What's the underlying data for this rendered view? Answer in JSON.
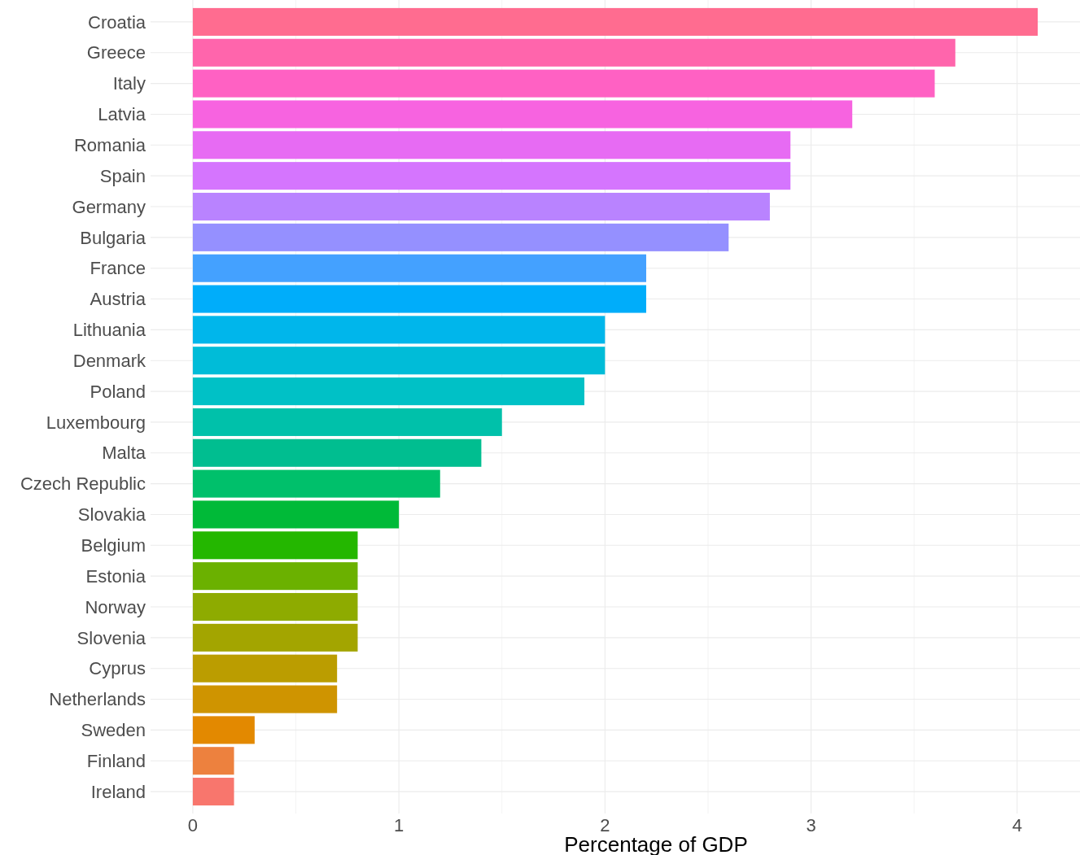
{
  "chart_data": {
    "type": "bar",
    "orientation": "horizontal",
    "xlabel": "Percentage of GDP",
    "categories": [
      "Croatia",
      "Greece",
      "Italy",
      "Latvia",
      "Romania",
      "Spain",
      "Germany",
      "Bulgaria",
      "France",
      "Austria",
      "Lithuania",
      "Denmark",
      "Poland",
      "Luxembourg",
      "Malta",
      "Czech Republic",
      "Slovakia",
      "Belgium",
      "Estonia",
      "Norway",
      "Slovenia",
      "Cyprus",
      "Netherlands",
      "Sweden",
      "Finland",
      "Ireland"
    ],
    "values": [
      4.1,
      3.7,
      3.6,
      3.2,
      2.9,
      2.9,
      2.8,
      2.6,
      2.2,
      2.2,
      2.0,
      2.0,
      1.9,
      1.5,
      1.4,
      1.2,
      1.0,
      0.8,
      0.8,
      0.8,
      0.8,
      0.7,
      0.7,
      0.3,
      0.2,
      0.2
    ],
    "colors": [
      "#FF6C90",
      "#FF65AC",
      "#FF61C3",
      "#F763E0",
      "#E76BF3",
      "#D575FE",
      "#B983FF",
      "#9590FF",
      "#44A1FF",
      "#00ADFA",
      "#00B6EB",
      "#00BCD8",
      "#00C1C6",
      "#00C1AA",
      "#00BE90",
      "#00C06B",
      "#00BA38",
      "#24B700",
      "#6BB100",
      "#8EAB00",
      "#A3A500",
      "#BB9D00",
      "#CF9400",
      "#E38900",
      "#ED813E",
      "#F8766D"
    ],
    "xlim": [
      -0.205,
      4.305
    ],
    "xticks": [
      0,
      {
        "value": 0.5,
        "label": null
      },
      1,
      {
        "value": 1.5,
        "label": null
      },
      2,
      {
        "value": 2.5,
        "label": null
      },
      3,
      {
        "value": 3.5,
        "label": null
      },
      4
    ],
    "grid": true
  }
}
